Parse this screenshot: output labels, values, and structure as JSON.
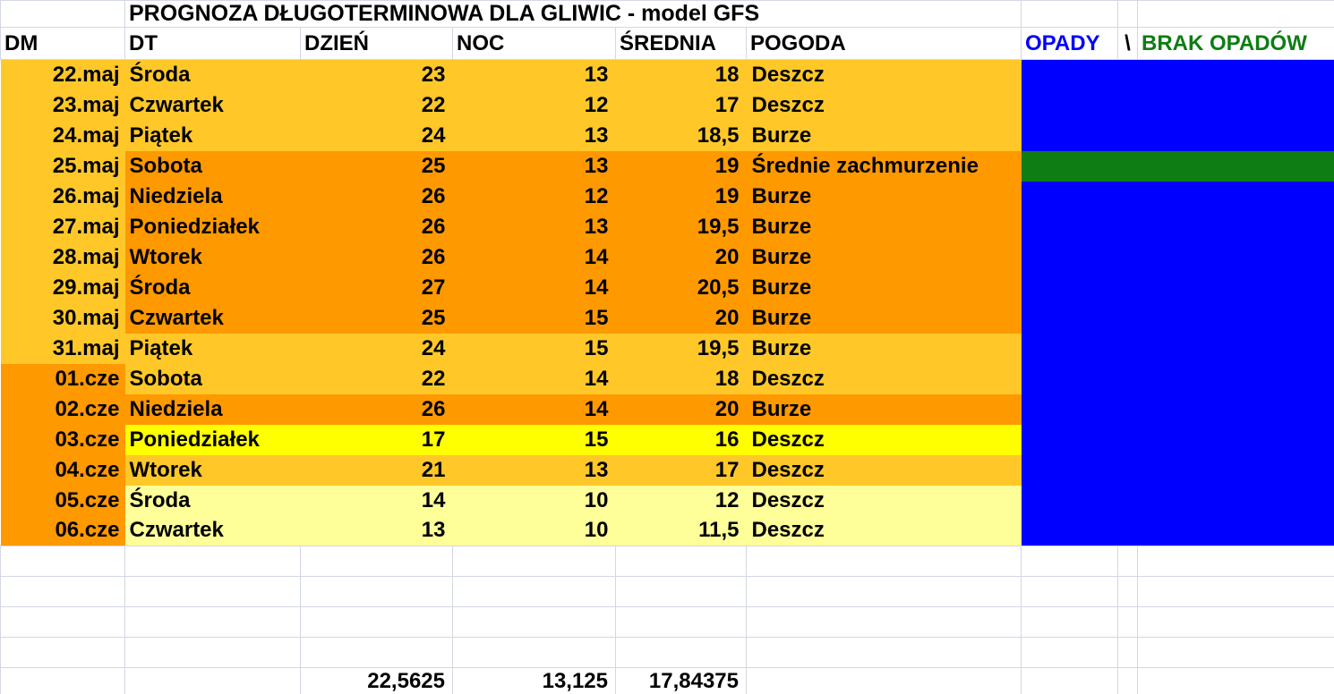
{
  "title": "PROGNOZA DŁUGOTERMINOWA DLA GLIWIC - model GFS",
  "columns": {
    "dm": "DM",
    "dt": "DT",
    "dzien": "DZIEŃ",
    "noc": "NOC",
    "srednia": "ŚREDNIA",
    "pogoda": "POGODA",
    "opady": "OPADY",
    "sep": "\\",
    "brak": "BRAK OPADÓW"
  },
  "header_text_colors": {
    "opady": "#0000ff",
    "brak": "#0e7d13"
  },
  "palette": {
    "gold": "#ffc828",
    "orange": "#ff9900",
    "yellow": "#ffff00",
    "pale": "#ffff99",
    "blue": "#0000ff",
    "green": "#0e7d13"
  },
  "rows": [
    {
      "dm": "22.maj",
      "dt": "Środa",
      "dzien": "23",
      "noc": "13",
      "srednia": "18",
      "pogoda": "Deszcz",
      "dm_color": "gold",
      "row_color": "gold",
      "opady_color": "blue"
    },
    {
      "dm": "23.maj",
      "dt": "Czwartek",
      "dzien": "22",
      "noc": "12",
      "srednia": "17",
      "pogoda": "Deszcz",
      "dm_color": "gold",
      "row_color": "gold",
      "opady_color": "blue"
    },
    {
      "dm": "24.maj",
      "dt": "Piątek",
      "dzien": "24",
      "noc": "13",
      "srednia": "18,5",
      "pogoda": "Burze",
      "dm_color": "gold",
      "row_color": "gold",
      "opady_color": "blue"
    },
    {
      "dm": "25.maj",
      "dt": "Sobota",
      "dzien": "25",
      "noc": "13",
      "srednia": "19",
      "pogoda": "Średnie zachmurzenie",
      "dm_color": "gold",
      "row_color": "orange",
      "opady_color": "green"
    },
    {
      "dm": "26.maj",
      "dt": "Niedziela",
      "dzien": "26",
      "noc": "12",
      "srednia": "19",
      "pogoda": "Burze",
      "dm_color": "gold",
      "row_color": "orange",
      "opady_color": "blue"
    },
    {
      "dm": "27.maj",
      "dt": "Poniedziałek",
      "dzien": "26",
      "noc": "13",
      "srednia": "19,5",
      "pogoda": "Burze",
      "dm_color": "gold",
      "row_color": "orange",
      "opady_color": "blue"
    },
    {
      "dm": "28.maj",
      "dt": "Wtorek",
      "dzien": "26",
      "noc": "14",
      "srednia": "20",
      "pogoda": "Burze",
      "dm_color": "gold",
      "row_color": "orange",
      "opady_color": "blue"
    },
    {
      "dm": "29.maj",
      "dt": "Środa",
      "dzien": "27",
      "noc": "14",
      "srednia": "20,5",
      "pogoda": "Burze",
      "dm_color": "gold",
      "row_color": "orange",
      "opady_color": "blue"
    },
    {
      "dm": "30.maj",
      "dt": "Czwartek",
      "dzien": "25",
      "noc": "15",
      "srednia": "20",
      "pogoda": "Burze",
      "dm_color": "gold",
      "row_color": "orange",
      "opady_color": "blue"
    },
    {
      "dm": "31.maj",
      "dt": "Piątek",
      "dzien": "24",
      "noc": "15",
      "srednia": "19,5",
      "pogoda": "Burze",
      "dm_color": "gold",
      "row_color": "gold",
      "opady_color": "blue"
    },
    {
      "dm": "01.cze",
      "dt": "Sobota",
      "dzien": "22",
      "noc": "14",
      "srednia": "18",
      "pogoda": "Deszcz",
      "dm_color": "orange",
      "row_color": "gold",
      "opady_color": "blue"
    },
    {
      "dm": "02.cze",
      "dt": "Niedziela",
      "dzien": "26",
      "noc": "14",
      "srednia": "20",
      "pogoda": "Burze",
      "dm_color": "orange",
      "row_color": "orange",
      "opady_color": "blue"
    },
    {
      "dm": "03.cze",
      "dt": "Poniedziałek",
      "dzien": "17",
      "noc": "15",
      "srednia": "16",
      "pogoda": "Deszcz",
      "dm_color": "orange",
      "row_color": "yellow",
      "opady_color": "blue"
    },
    {
      "dm": "04.cze",
      "dt": "Wtorek",
      "dzien": "21",
      "noc": "13",
      "srednia": "17",
      "pogoda": "Deszcz",
      "dm_color": "orange",
      "row_color": "gold",
      "opady_color": "blue"
    },
    {
      "dm": "05.cze",
      "dt": "Środa",
      "dzien": "14",
      "noc": "10",
      "srednia": "12",
      "pogoda": "Deszcz",
      "dm_color": "orange",
      "row_color": "pale",
      "opady_color": "blue"
    },
    {
      "dm": "06.cze",
      "dt": "Czwartek",
      "dzien": "13",
      "noc": "10",
      "srednia": "11,5",
      "pogoda": "Deszcz",
      "dm_color": "orange",
      "row_color": "pale",
      "opady_color": "blue"
    }
  ],
  "empty_row_count": 4,
  "footer": {
    "dzien_avg": "22,5625",
    "noc_avg": "13,125",
    "srednia_avg": "17,84375"
  }
}
